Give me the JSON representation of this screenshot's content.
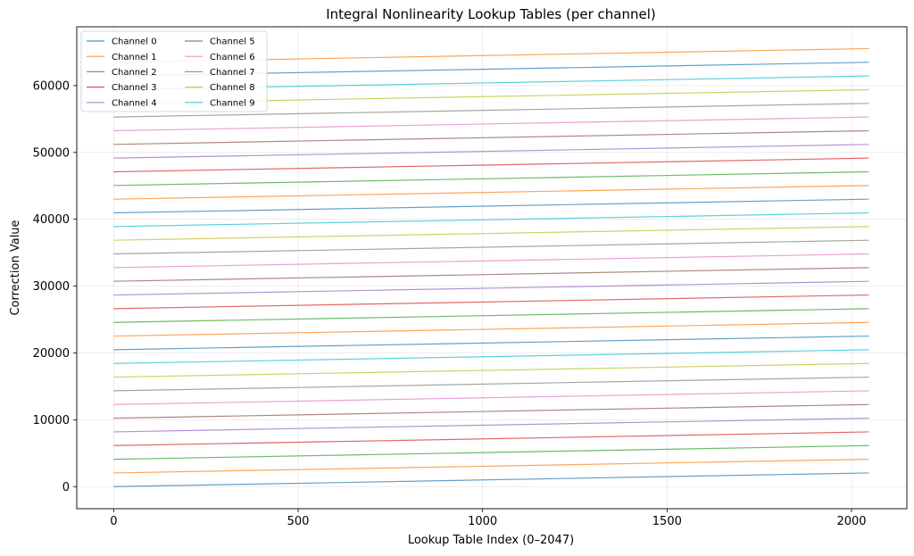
{
  "chart_data": {
    "type": "line",
    "title": "Integral Nonlinearity Lookup Tables (per channel)",
    "xlabel": "Lookup Table Index (0–2047)",
    "ylabel": "Correction Value",
    "xlim": [
      -100,
      2150
    ],
    "ylim": [
      -3300,
      68800
    ],
    "xticks": [
      0,
      500,
      1000,
      1500,
      2000
    ],
    "yticks": [
      0,
      10000,
      20000,
      30000,
      40000,
      50000,
      60000
    ],
    "grid": true,
    "legend_position": "top-left",
    "legend_columns": 2,
    "palette": [
      "#1f77b4",
      "#ff7f0e",
      "#2ca02c",
      "#d62728",
      "#9467bd",
      "#8c564b",
      "#e377c2",
      "#7f7f7f",
      "#bcbd22",
      "#17becf"
    ],
    "series": [
      {
        "name": "Channel 0",
        "x": [
          0,
          2047
        ],
        "y": [
          0,
          2047
        ]
      },
      {
        "name": "Channel 1",
        "x": [
          0,
          2047
        ],
        "y": [
          2048,
          4095
        ]
      },
      {
        "name": "Channel 2",
        "x": [
          0,
          2047
        ],
        "y": [
          4096,
          6143
        ]
      },
      {
        "name": "Channel 3",
        "x": [
          0,
          2047
        ],
        "y": [
          6144,
          8191
        ]
      },
      {
        "name": "Channel 4",
        "x": [
          0,
          2047
        ],
        "y": [
          8192,
          10239
        ]
      },
      {
        "name": "Channel 5",
        "x": [
          0,
          2047
        ],
        "y": [
          10240,
          12287
        ]
      },
      {
        "name": "Channel 6",
        "x": [
          0,
          2047
        ],
        "y": [
          12288,
          14335
        ]
      },
      {
        "name": "Channel 7",
        "x": [
          0,
          2047
        ],
        "y": [
          14336,
          16383
        ]
      },
      {
        "name": "Channel 8",
        "x": [
          0,
          2047
        ],
        "y": [
          16384,
          18431
        ]
      },
      {
        "name": "Channel 9",
        "x": [
          0,
          2047
        ],
        "y": [
          18432,
          20479
        ]
      },
      {
        "x": [
          0,
          2047
        ],
        "y": [
          20480,
          22527
        ]
      },
      {
        "x": [
          0,
          2047
        ],
        "y": [
          22528,
          24575
        ]
      },
      {
        "x": [
          0,
          2047
        ],
        "y": [
          24576,
          26623
        ]
      },
      {
        "x": [
          0,
          2047
        ],
        "y": [
          26624,
          28671
        ]
      },
      {
        "x": [
          0,
          2047
        ],
        "y": [
          28672,
          30719
        ]
      },
      {
        "x": [
          0,
          2047
        ],
        "y": [
          30720,
          32767
        ]
      },
      {
        "x": [
          0,
          2047
        ],
        "y": [
          32768,
          34815
        ]
      },
      {
        "x": [
          0,
          2047
        ],
        "y": [
          34816,
          36863
        ]
      },
      {
        "x": [
          0,
          2047
        ],
        "y": [
          36864,
          38911
        ]
      },
      {
        "x": [
          0,
          2047
        ],
        "y": [
          38912,
          40959
        ]
      },
      {
        "x": [
          0,
          2047
        ],
        "y": [
          40960,
          43007
        ]
      },
      {
        "x": [
          0,
          2047
        ],
        "y": [
          43008,
          45055
        ]
      },
      {
        "x": [
          0,
          2047
        ],
        "y": [
          45056,
          47103
        ]
      },
      {
        "x": [
          0,
          2047
        ],
        "y": [
          47104,
          49151
        ]
      },
      {
        "x": [
          0,
          2047
        ],
        "y": [
          49152,
          51199
        ]
      },
      {
        "x": [
          0,
          2047
        ],
        "y": [
          51200,
          53247
        ]
      },
      {
        "x": [
          0,
          2047
        ],
        "y": [
          53248,
          55295
        ]
      },
      {
        "x": [
          0,
          2047
        ],
        "y": [
          55296,
          57343
        ]
      },
      {
        "x": [
          0,
          2047
        ],
        "y": [
          57344,
          59391
        ]
      },
      {
        "x": [
          0,
          2047
        ],
        "y": [
          59392,
          61439
        ]
      },
      {
        "x": [
          0,
          2047
        ],
        "y": [
          61440,
          63487
        ]
      },
      {
        "x": [
          0,
          2047
        ],
        "y": [
          63488,
          65535
        ]
      }
    ]
  }
}
